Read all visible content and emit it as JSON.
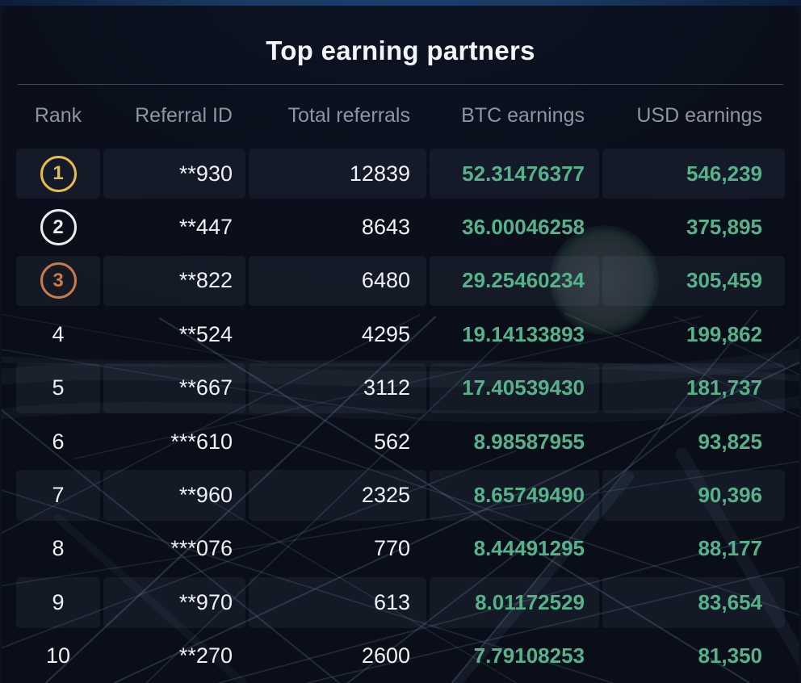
{
  "page": {
    "title": "Top earning partners"
  },
  "colors": {
    "accent_green": "#56b28a",
    "gold": "#e5bd4e",
    "silver": "#e9ebee",
    "bronze": "#c77a4a"
  },
  "table": {
    "columns": [
      {
        "key": "rank",
        "label": "Rank"
      },
      {
        "key": "referral_id",
        "label": "Referral ID"
      },
      {
        "key": "total_referrals",
        "label": "Total referrals"
      },
      {
        "key": "btc_earnings",
        "label": "BTC earnings"
      },
      {
        "key": "usd_earnings",
        "label": "USD earnings"
      }
    ],
    "rows": [
      {
        "rank": "1",
        "medal": "gold",
        "referral_id": "**930",
        "total_referrals": "12839",
        "btc_earnings": "52.31476377",
        "usd_earnings": "546,239"
      },
      {
        "rank": "2",
        "medal": "silver",
        "referral_id": "**447",
        "total_referrals": "8643",
        "btc_earnings": "36.00046258",
        "usd_earnings": "375,895"
      },
      {
        "rank": "3",
        "medal": "bronze",
        "referral_id": "**822",
        "total_referrals": "6480",
        "btc_earnings": "29.25460234",
        "usd_earnings": "305,459"
      },
      {
        "rank": "4",
        "medal": null,
        "referral_id": "**524",
        "total_referrals": "4295",
        "btc_earnings": "19.14133893",
        "usd_earnings": "199,862"
      },
      {
        "rank": "5",
        "medal": null,
        "referral_id": "**667",
        "total_referrals": "3112",
        "btc_earnings": "17.40539430",
        "usd_earnings": "181,737"
      },
      {
        "rank": "6",
        "medal": null,
        "referral_id": "***610",
        "total_referrals": "562",
        "btc_earnings": "8.98587955",
        "usd_earnings": "93,825"
      },
      {
        "rank": "7",
        "medal": null,
        "referral_id": "**960",
        "total_referrals": "2325",
        "btc_earnings": "8.65749490",
        "usd_earnings": "90,396"
      },
      {
        "rank": "8",
        "medal": null,
        "referral_id": "***076",
        "total_referrals": "770",
        "btc_earnings": "8.44491295",
        "usd_earnings": "88,177"
      },
      {
        "rank": "9",
        "medal": null,
        "referral_id": "**970",
        "total_referrals": "613",
        "btc_earnings": "8.01172529",
        "usd_earnings": "83,654"
      },
      {
        "rank": "10",
        "medal": null,
        "referral_id": "**270",
        "total_referrals": "2600",
        "btc_earnings": "7.79108253",
        "usd_earnings": "81,350"
      }
    ]
  }
}
